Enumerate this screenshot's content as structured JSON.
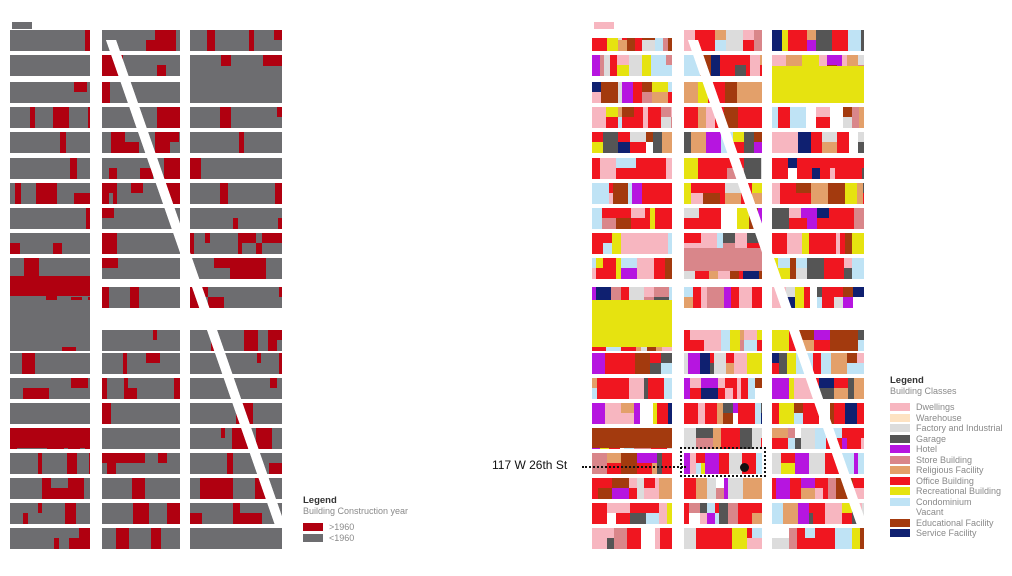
{
  "maps": {
    "construction": {
      "name": "Building Construction year map"
    },
    "classes": {
      "name": "Building Classes map"
    }
  },
  "legend_construction": {
    "title": "Legend",
    "subtitle": "Building Construction year",
    "items": [
      {
        "label": ">1960",
        "color": "#b00010"
      },
      {
        "label": "<1960",
        "color": "#6d6d70"
      }
    ]
  },
  "legend_classes": {
    "title": "Legend",
    "subtitle": "Building Classes",
    "items": [
      {
        "label": "Dwellings",
        "color": "#f7b6c0"
      },
      {
        "label": "Warehouse",
        "color": "#fde2c2"
      },
      {
        "label": "Factory and Industrial",
        "color": "#dcdcdc"
      },
      {
        "label": "Garage",
        "color": "#555555"
      },
      {
        "label": "Hotel",
        "color": "#b615e0"
      },
      {
        "label": "Store Building",
        "color": "#d9868a"
      },
      {
        "label": "Religious Facility",
        "color": "#e3a06a"
      },
      {
        "label": "Office Building",
        "color": "#f01620"
      },
      {
        "label": "Recreational Building",
        "color": "#e6e310"
      },
      {
        "label": "Condominium",
        "color": "#bfe3f5"
      },
      {
        "label": "Vacant",
        "color": "#ffffff"
      },
      {
        "label": "Educational Facility",
        "color": "#a33a0e"
      },
      {
        "label": "Service Facility",
        "color": "#0f2070"
      }
    ]
  },
  "annotation": {
    "address": "117 W 26th St"
  }
}
